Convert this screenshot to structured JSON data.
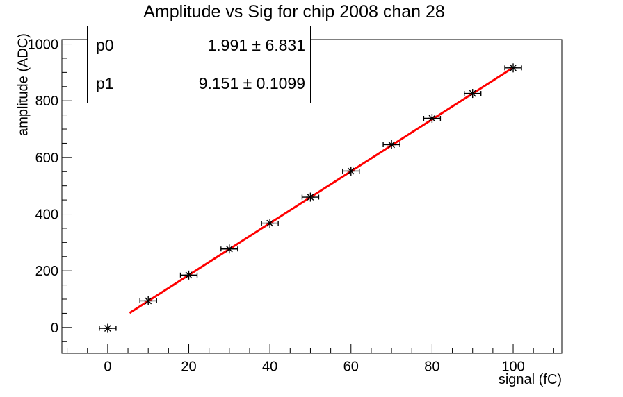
{
  "chart_data": {
    "type": "scatter",
    "title": "Amplitude vs Sig for chip 2008 chan 28",
    "xlabel": "signal (fC)",
    "ylabel": "amplitude (ADC)",
    "x": [
      0,
      10,
      20,
      30,
      40,
      50,
      60,
      70,
      80,
      90,
      100
    ],
    "y": [
      -3,
      94,
      185,
      277,
      368,
      460,
      552,
      645,
      738,
      826,
      916
    ],
    "x_error": 1.2,
    "marker": "asterisk",
    "marker_color": "#000000",
    "axis_color": "#000000",
    "background_color": "#ffffff",
    "grid": false,
    "legend": "none",
    "xlim": [
      -11.3,
      112
    ],
    "ylim": [
      -91,
      1016
    ],
    "x_major_ticks": [
      0,
      20,
      40,
      60,
      80,
      100
    ],
    "x_minor_step": 5,
    "y_major_ticks": [
      0,
      200,
      400,
      600,
      800,
      1000
    ],
    "y_minor_step": 50,
    "fit": {
      "type": "linear",
      "p0": 1.991,
      "p0_err": 6.831,
      "p1": 9.151,
      "p1_err": 0.1099,
      "x_range": [
        5.4,
        100
      ],
      "color": "#ff0000"
    }
  },
  "stats_box": {
    "rows": [
      {
        "param": "p0",
        "value": "1.991 ± 6.831"
      },
      {
        "param": "p1",
        "value": "9.151 ± 0.1099"
      }
    ]
  }
}
